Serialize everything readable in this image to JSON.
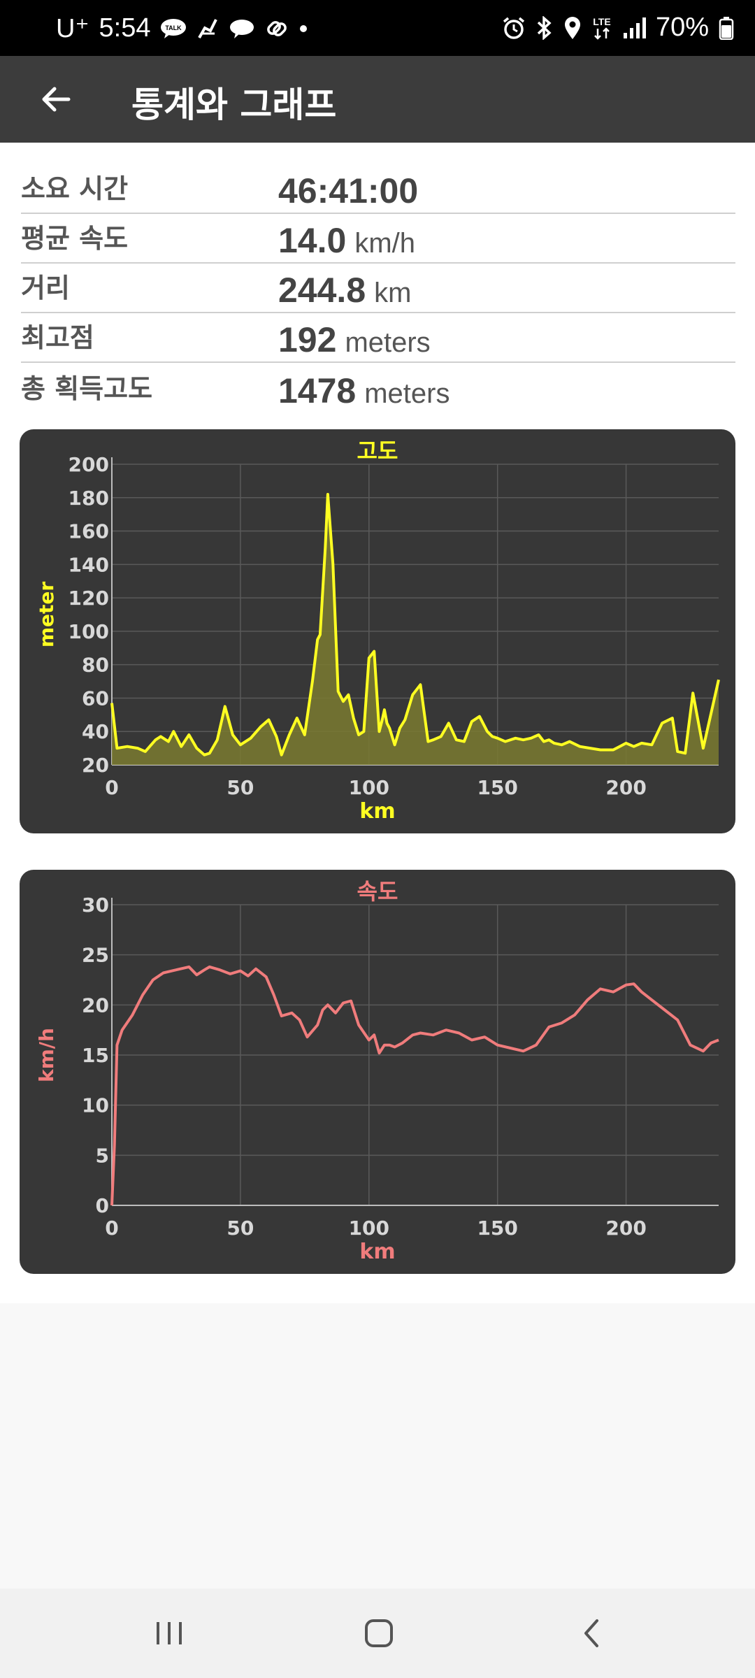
{
  "status_bar": {
    "carrier": "U⁺",
    "time": "5:54",
    "notif_icons": [
      "kakaotalk-icon",
      "tick-icon",
      "chat-bubble-icon",
      "link-icon",
      "dot-icon"
    ],
    "sys_icons": [
      "alarm-icon",
      "bluetooth-icon",
      "location-icon",
      "lte-icon",
      "signal-icon"
    ],
    "network": "LTE",
    "battery": "70%"
  },
  "app_bar": {
    "title": "통계와 그래프"
  },
  "stats": [
    {
      "label": "소요 시간",
      "value": "46:41:00",
      "unit": ""
    },
    {
      "label": "평균 속도",
      "value": "14.0",
      "unit": "km/h"
    },
    {
      "label": "거리",
      "value": "244.8",
      "unit": "km"
    },
    {
      "label": "최고점",
      "value": "192",
      "unit": "meters"
    },
    {
      "label": "총 획득고도",
      "value": "1478",
      "unit": "meters"
    }
  ],
  "chart_data": [
    {
      "type": "area",
      "title": "고도",
      "xlabel": "km",
      "ylabel": "meter",
      "color": "#ffff22",
      "fill": "#7a7a30",
      "xlim": [
        0,
        236
      ],
      "ylim": [
        20,
        200
      ],
      "xticks": [
        0,
        50,
        100,
        150,
        200
      ],
      "yticks": [
        20,
        40,
        60,
        80,
        100,
        120,
        140,
        160,
        180,
        200
      ],
      "grid": true,
      "x": [
        0,
        2,
        6,
        10,
        13,
        17,
        19,
        22,
        24,
        27,
        30,
        33,
        36,
        38,
        41,
        44,
        47,
        50,
        54,
        58,
        61,
        64,
        66,
        69,
        72,
        75,
        78,
        80,
        81,
        83,
        84,
        86,
        88,
        90,
        92,
        94,
        96,
        98,
        100,
        102,
        104,
        105,
        106,
        107,
        108,
        110,
        112,
        114,
        117,
        120,
        123,
        125,
        128,
        131,
        134,
        137,
        140,
        143,
        146,
        148,
        150,
        153,
        157,
        160,
        163,
        166,
        168,
        170,
        172,
        175,
        178,
        182,
        186,
        190,
        195,
        200,
        203,
        206,
        210,
        214,
        218,
        220,
        223,
        226,
        230,
        236
      ],
      "y": [
        57,
        30,
        31,
        30,
        28,
        35,
        37,
        34,
        40,
        31,
        38,
        30,
        26,
        27,
        35,
        55,
        38,
        32,
        36,
        43,
        47,
        37,
        26,
        38,
        48,
        38,
        70,
        95,
        98,
        150,
        182,
        140,
        64,
        58,
        62,
        48,
        38,
        40,
        84,
        88,
        40,
        46,
        53,
        45,
        42,
        32,
        42,
        47,
        62,
        68,
        34,
        35,
        37,
        45,
        35,
        34,
        46,
        49,
        40,
        37,
        36,
        34,
        36,
        35,
        36,
        38,
        34,
        35,
        33,
        32,
        34,
        31,
        30,
        29,
        29,
        33,
        31,
        33,
        32,
        45,
        48,
        28,
        27,
        63,
        30,
        71
      ]
    },
    {
      "type": "line",
      "title": "속도",
      "xlabel": "km",
      "ylabel": "km/h",
      "color": "#f07c7c",
      "xlim": [
        0,
        236
      ],
      "ylim": [
        0,
        30
      ],
      "xticks": [
        0,
        50,
        100,
        150,
        200
      ],
      "yticks": [
        0,
        5,
        10,
        15,
        20,
        25,
        30
      ],
      "grid": true,
      "x": [
        0,
        1,
        2,
        4,
        8,
        12,
        16,
        20,
        25,
        30,
        33,
        36,
        38,
        42,
        46,
        50,
        53,
        56,
        60,
        63,
        66,
        70,
        73,
        76,
        80,
        82,
        84,
        87,
        90,
        93,
        96,
        100,
        102,
        104,
        106,
        108,
        110,
        113,
        117,
        120,
        125,
        130,
        135,
        140,
        145,
        150,
        155,
        160,
        165,
        170,
        175,
        180,
        185,
        190,
        195,
        200,
        203,
        206,
        210,
        215,
        220,
        225,
        230,
        233,
        236
      ],
      "y": [
        0,
        6,
        16,
        17.5,
        19,
        21,
        22.5,
        23.2,
        23.5,
        23.8,
        23,
        23.5,
        23.8,
        23.5,
        23.1,
        23.4,
        22.9,
        23.6,
        22.8,
        21,
        18.9,
        19.2,
        18.5,
        16.8,
        18,
        19.5,
        20,
        19.2,
        20.2,
        20.4,
        18,
        16.5,
        17,
        15.2,
        16,
        16,
        15.8,
        16.2,
        17,
        17.2,
        17,
        17.5,
        17.2,
        16.5,
        16.8,
        16,
        15.7,
        15.4,
        16,
        17.8,
        18.2,
        19,
        20.5,
        21.6,
        21.3,
        22,
        22.1,
        21.3,
        20.5,
        19.5,
        18.5,
        16,
        15.4,
        16.2,
        16.5
      ]
    }
  ],
  "nav_bar": {
    "icons": [
      "recent-apps-icon",
      "home-icon",
      "back-icon"
    ]
  }
}
